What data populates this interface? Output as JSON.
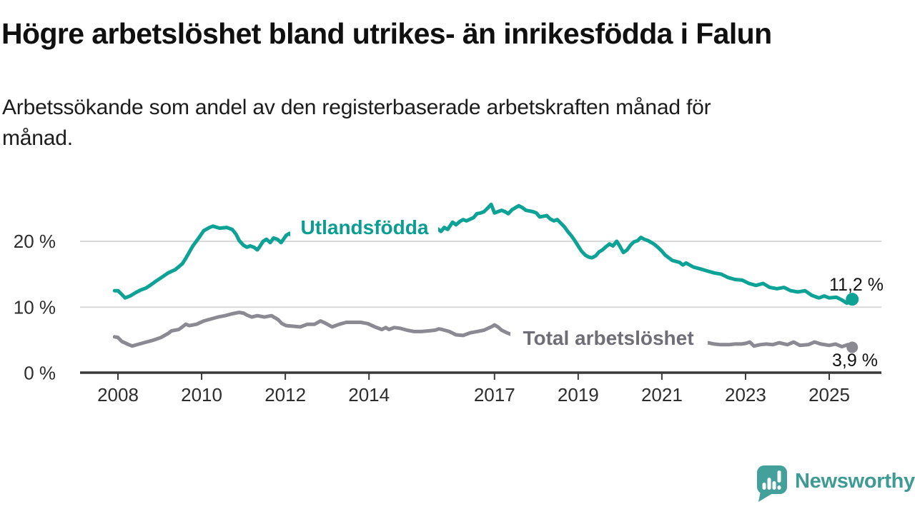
{
  "header": {
    "title": "Högre arbetslöshet bland utrikes- än inrikesfödda i Falun",
    "subtitle_line1": "Arbetssökande som andel av den registerbaserade arbetskraften månad för",
    "subtitle_line2": "månad."
  },
  "footer": {
    "brand": "Newsworthy",
    "logo_icon": "newsworthy-speech-bubble-bar-chart-icon"
  },
  "colors": {
    "foreign_born_line": "#0ca296",
    "foreign_born_label": "#0a9d91",
    "total_line": "#8b8991",
    "total_label": "#6f6d76",
    "axis": "#3a3a3a",
    "grid": "#d9d9d9",
    "tick_text": "#2d2d2d",
    "value_text": "#111111",
    "brand": "#3e9a94"
  },
  "chart_data": {
    "type": "line",
    "grid": "horizontal-only",
    "ylim": [
      0,
      28
    ],
    "xlim": [
      2007.9,
      2025.7
    ],
    "yticks": [
      {
        "label": "20 %",
        "value": 20
      },
      {
        "label": "10 %",
        "value": 10
      },
      {
        "label": "0 %",
        "value": 0
      }
    ],
    "xticks": [
      {
        "label": "2008",
        "value": 2008
      },
      {
        "label": "2010",
        "value": 2010
      },
      {
        "label": "2012",
        "value": 2012
      },
      {
        "label": "2014",
        "value": 2014
      },
      {
        "label": "2017",
        "value": 2017
      },
      {
        "label": "2019",
        "value": 2019
      },
      {
        "label": "2021",
        "value": 2021
      },
      {
        "label": "2023",
        "value": 2023
      },
      {
        "label": "2025",
        "value": 2025
      }
    ],
    "series": [
      {
        "name": "Total arbetslöshet",
        "end_label": "3,9 %",
        "end_value": 3.9,
        "points": [
          [
            2007.92,
            5.5
          ],
          [
            2008.0,
            5.4
          ],
          [
            2008.09,
            4.8
          ],
          [
            2008.26,
            4.3
          ],
          [
            2008.34,
            4.1
          ],
          [
            2008.51,
            4.4
          ],
          [
            2008.68,
            4.7
          ],
          [
            2008.85,
            5.0
          ],
          [
            2009.03,
            5.4
          ],
          [
            2009.2,
            6.0
          ],
          [
            2009.28,
            6.4
          ],
          [
            2009.45,
            6.6
          ],
          [
            2009.54,
            7.0
          ],
          [
            2009.62,
            7.4
          ],
          [
            2009.71,
            7.2
          ],
          [
            2009.88,
            7.4
          ],
          [
            2010.05,
            7.9
          ],
          [
            2010.22,
            8.2
          ],
          [
            2010.39,
            8.5
          ],
          [
            2010.56,
            8.7
          ],
          [
            2010.73,
            9.0
          ],
          [
            2010.9,
            9.2
          ],
          [
            2011.0,
            9.1
          ],
          [
            2011.08,
            8.8
          ],
          [
            2011.2,
            8.5
          ],
          [
            2011.33,
            8.7
          ],
          [
            2011.5,
            8.5
          ],
          [
            2011.67,
            8.7
          ],
          [
            2011.83,
            8.1
          ],
          [
            2011.92,
            7.5
          ],
          [
            2012.02,
            7.2
          ],
          [
            2012.19,
            7.1
          ],
          [
            2012.36,
            7.0
          ],
          [
            2012.53,
            7.4
          ],
          [
            2012.7,
            7.4
          ],
          [
            2012.84,
            7.9
          ],
          [
            2012.95,
            7.6
          ],
          [
            2013.12,
            7.0
          ],
          [
            2013.29,
            7.4
          ],
          [
            2013.46,
            7.7
          ],
          [
            2013.63,
            7.7
          ],
          [
            2013.8,
            7.7
          ],
          [
            2013.97,
            7.5
          ],
          [
            2014.14,
            7.0
          ],
          [
            2014.31,
            6.6
          ],
          [
            2014.4,
            6.9
          ],
          [
            2014.48,
            6.6
          ],
          [
            2014.6,
            6.9
          ],
          [
            2014.74,
            6.8
          ],
          [
            2014.91,
            6.5
          ],
          [
            2015.08,
            6.3
          ],
          [
            2015.25,
            6.3
          ],
          [
            2015.42,
            6.4
          ],
          [
            2015.58,
            6.5
          ],
          [
            2015.67,
            6.7
          ],
          [
            2015.75,
            6.6
          ],
          [
            2015.92,
            6.3
          ],
          [
            2016.08,
            5.8
          ],
          [
            2016.25,
            5.7
          ],
          [
            2016.42,
            6.1
          ],
          [
            2016.58,
            6.3
          ],
          [
            2016.75,
            6.5
          ],
          [
            2016.92,
            7.0
          ],
          [
            2017.0,
            7.3
          ],
          [
            2017.08,
            7.0
          ],
          [
            2017.17,
            6.5
          ],
          [
            2017.3,
            6.1
          ],
          [
            2017.38,
            5.9
          ],
          [
            2017.5,
            5.9
          ],
          [
            2017.75,
            5.8
          ],
          [
            2018.0,
            5.6
          ],
          [
            2018.5,
            5.4
          ],
          [
            2019.0,
            5.1
          ],
          [
            2019.5,
            5.0
          ],
          [
            2020.0,
            5.4
          ],
          [
            2020.5,
            5.6
          ],
          [
            2021.0,
            5.3
          ],
          [
            2021.5,
            4.9
          ],
          [
            2021.9,
            4.7
          ],
          [
            2022.1,
            4.6
          ],
          [
            2022.25,
            4.4
          ],
          [
            2022.4,
            4.3
          ],
          [
            2022.6,
            4.3
          ],
          [
            2022.75,
            4.4
          ],
          [
            2022.9,
            4.4
          ],
          [
            2023.0,
            4.5
          ],
          [
            2023.1,
            4.7
          ],
          [
            2023.2,
            4.1
          ],
          [
            2023.35,
            4.3
          ],
          [
            2023.5,
            4.4
          ],
          [
            2023.65,
            4.3
          ],
          [
            2023.8,
            4.6
          ],
          [
            2024.0,
            4.3
          ],
          [
            2024.15,
            4.7
          ],
          [
            2024.3,
            4.2
          ],
          [
            2024.5,
            4.3
          ],
          [
            2024.65,
            4.7
          ],
          [
            2024.8,
            4.4
          ],
          [
            2025.0,
            4.2
          ],
          [
            2025.15,
            4.4
          ],
          [
            2025.3,
            4.0
          ],
          [
            2025.45,
            4.3
          ],
          [
            2025.55,
            3.9
          ]
        ]
      },
      {
        "name": "Utlandsfödda",
        "end_label": "11,2 %",
        "end_value": 11.2,
        "points": [
          [
            2007.92,
            12.5
          ],
          [
            2008.0,
            12.5
          ],
          [
            2008.08,
            12.0
          ],
          [
            2008.17,
            11.4
          ],
          [
            2008.29,
            11.7
          ],
          [
            2008.42,
            12.2
          ],
          [
            2008.54,
            12.6
          ],
          [
            2008.67,
            12.9
          ],
          [
            2008.79,
            13.4
          ],
          [
            2008.92,
            14.0
          ],
          [
            2009.04,
            14.5
          ],
          [
            2009.2,
            15.2
          ],
          [
            2009.37,
            15.7
          ],
          [
            2009.54,
            16.6
          ],
          [
            2009.62,
            17.4
          ],
          [
            2009.79,
            19.3
          ],
          [
            2009.93,
            20.5
          ],
          [
            2010.05,
            21.6
          ],
          [
            2010.19,
            22.1
          ],
          [
            2010.27,
            22.3
          ],
          [
            2010.43,
            22.0
          ],
          [
            2010.6,
            22.1
          ],
          [
            2010.73,
            21.8
          ],
          [
            2010.82,
            21.1
          ],
          [
            2010.9,
            20.1
          ],
          [
            2011.0,
            19.4
          ],
          [
            2011.08,
            19.1
          ],
          [
            2011.16,
            19.3
          ],
          [
            2011.25,
            19.1
          ],
          [
            2011.33,
            18.7
          ],
          [
            2011.38,
            19.1
          ],
          [
            2011.47,
            20.0
          ],
          [
            2011.55,
            20.3
          ],
          [
            2011.64,
            19.8
          ],
          [
            2011.72,
            20.5
          ],
          [
            2011.81,
            20.3
          ],
          [
            2011.9,
            19.8
          ],
          [
            2012.02,
            20.9
          ],
          [
            2012.1,
            21.2
          ],
          [
            2012.19,
            20.6
          ],
          [
            2012.4,
            20.9
          ],
          [
            2012.6,
            21.0
          ],
          [
            2012.8,
            20.9
          ],
          [
            2013.0,
            21.0
          ],
          [
            2013.5,
            21.1
          ],
          [
            2014.0,
            21.3
          ],
          [
            2014.5,
            21.4
          ],
          [
            2015.0,
            21.5
          ],
          [
            2015.3,
            21.6
          ],
          [
            2015.55,
            21.9
          ],
          [
            2015.64,
            21.9
          ],
          [
            2015.72,
            21.5
          ],
          [
            2015.8,
            22.1
          ],
          [
            2015.88,
            21.8
          ],
          [
            2016.0,
            22.9
          ],
          [
            2016.08,
            22.5
          ],
          [
            2016.17,
            23.0
          ],
          [
            2016.25,
            23.3
          ],
          [
            2016.33,
            23.1
          ],
          [
            2016.5,
            23.6
          ],
          [
            2016.58,
            24.2
          ],
          [
            2016.67,
            24.3
          ],
          [
            2016.75,
            24.5
          ],
          [
            2016.83,
            25.0
          ],
          [
            2016.92,
            25.6
          ],
          [
            2017.0,
            24.3
          ],
          [
            2017.08,
            24.5
          ],
          [
            2017.17,
            24.7
          ],
          [
            2017.25,
            24.5
          ],
          [
            2017.33,
            24.2
          ],
          [
            2017.42,
            24.8
          ],
          [
            2017.58,
            25.4
          ],
          [
            2017.67,
            25.1
          ],
          [
            2017.75,
            24.7
          ],
          [
            2017.92,
            24.5
          ],
          [
            2018.0,
            24.3
          ],
          [
            2018.08,
            23.7
          ],
          [
            2018.25,
            23.9
          ],
          [
            2018.33,
            23.4
          ],
          [
            2018.42,
            23.1
          ],
          [
            2018.5,
            23.3
          ],
          [
            2018.67,
            22.2
          ],
          [
            2018.75,
            21.5
          ],
          [
            2018.83,
            20.9
          ],
          [
            2018.92,
            20.1
          ],
          [
            2019.0,
            19.3
          ],
          [
            2019.08,
            18.5
          ],
          [
            2019.17,
            17.9
          ],
          [
            2019.25,
            17.6
          ],
          [
            2019.33,
            17.5
          ],
          [
            2019.42,
            17.8
          ],
          [
            2019.5,
            18.4
          ],
          [
            2019.58,
            18.7
          ],
          [
            2019.67,
            19.2
          ],
          [
            2019.75,
            19.6
          ],
          [
            2019.83,
            19.3
          ],
          [
            2019.92,
            20.0
          ],
          [
            2020.0,
            19.2
          ],
          [
            2020.08,
            18.3
          ],
          [
            2020.17,
            18.7
          ],
          [
            2020.25,
            19.4
          ],
          [
            2020.33,
            19.9
          ],
          [
            2020.42,
            20.1
          ],
          [
            2020.5,
            20.6
          ],
          [
            2020.58,
            20.3
          ],
          [
            2020.67,
            20.1
          ],
          [
            2020.75,
            19.8
          ],
          [
            2020.83,
            19.5
          ],
          [
            2020.92,
            19.0
          ],
          [
            2021.0,
            18.5
          ],
          [
            2021.08,
            17.9
          ],
          [
            2021.25,
            17.1
          ],
          [
            2021.42,
            16.8
          ],
          [
            2021.5,
            16.4
          ],
          [
            2021.58,
            16.7
          ],
          [
            2021.75,
            16.1
          ],
          [
            2021.92,
            15.8
          ],
          [
            2022.08,
            15.5
          ],
          [
            2022.25,
            15.2
          ],
          [
            2022.42,
            15.0
          ],
          [
            2022.58,
            14.5
          ],
          [
            2022.75,
            14.2
          ],
          [
            2022.92,
            14.1
          ],
          [
            2023.08,
            13.6
          ],
          [
            2023.25,
            13.3
          ],
          [
            2023.42,
            13.6
          ],
          [
            2023.58,
            13.0
          ],
          [
            2023.75,
            12.8
          ],
          [
            2023.92,
            13.0
          ],
          [
            2024.08,
            12.5
          ],
          [
            2024.25,
            12.3
          ],
          [
            2024.42,
            12.5
          ],
          [
            2024.58,
            11.8
          ],
          [
            2024.75,
            11.4
          ],
          [
            2024.88,
            11.7
          ],
          [
            2025.0,
            11.4
          ],
          [
            2025.17,
            11.5
          ],
          [
            2025.3,
            11.1
          ],
          [
            2025.42,
            10.6
          ],
          [
            2025.55,
            11.2
          ]
        ]
      }
    ]
  }
}
